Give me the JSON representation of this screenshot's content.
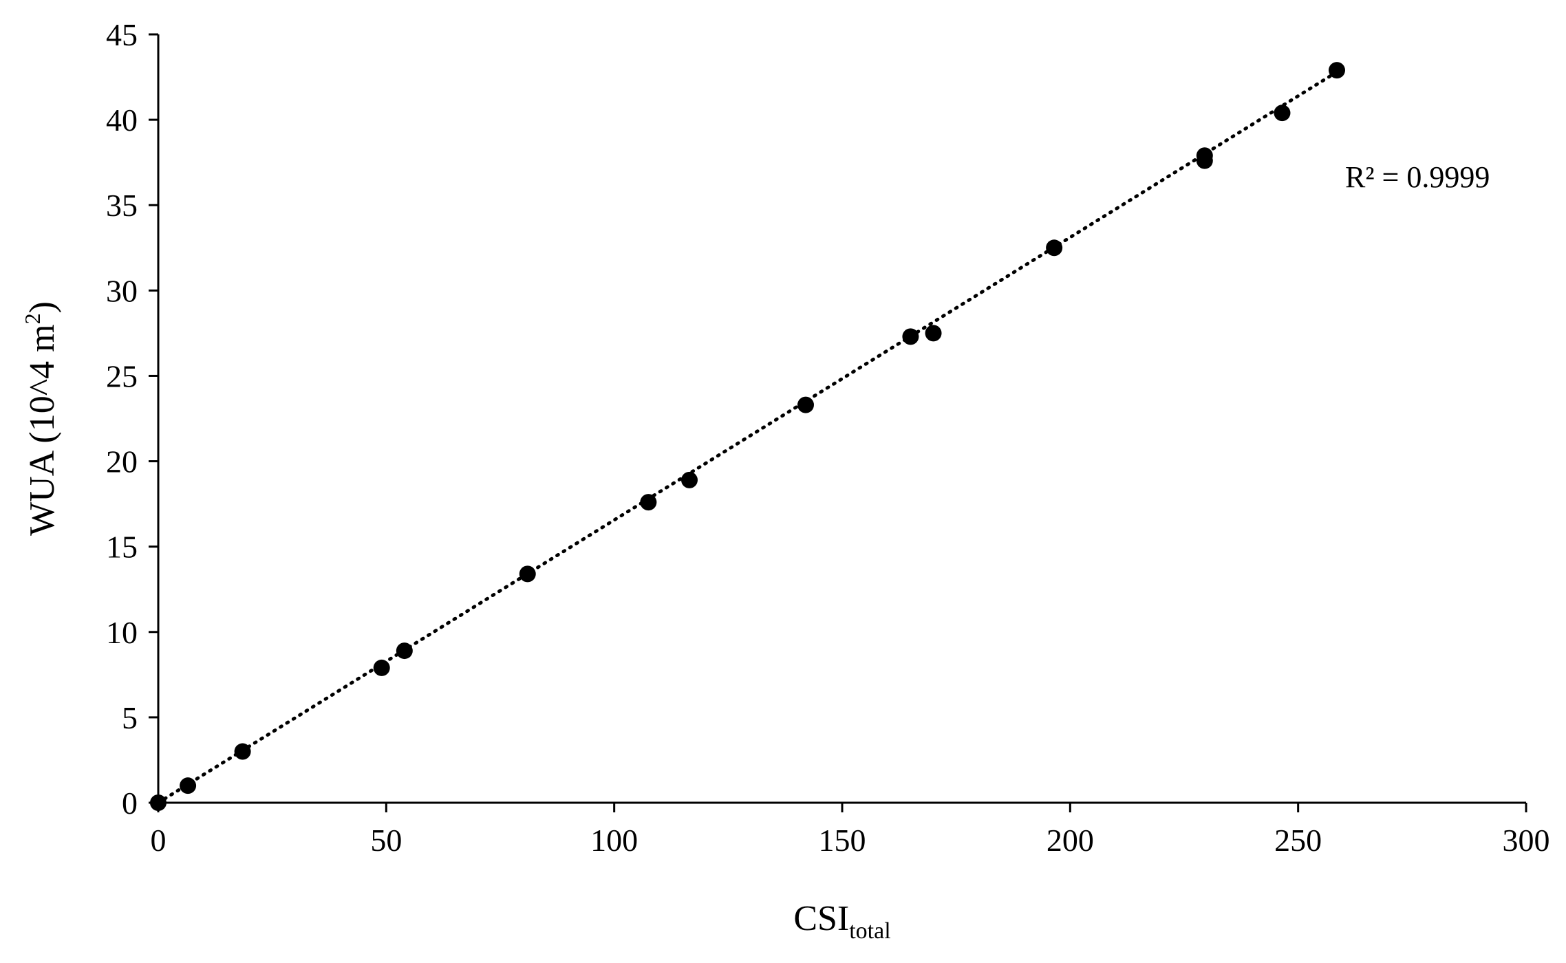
{
  "chart_data": {
    "type": "scatter",
    "xlabel": "CSI",
    "xlabel_sub": "total",
    "ylabel": "WUA (10^4 m",
    "ylabel_sup": "2",
    "ylabel_end": ")",
    "xlim": [
      0,
      300
    ],
    "ylim": [
      0,
      45
    ],
    "xticks": [
      0,
      50,
      100,
      150,
      200,
      250,
      300
    ],
    "yticks": [
      0,
      5,
      10,
      15,
      20,
      25,
      30,
      35,
      40,
      45
    ],
    "grid": false,
    "legend": "none",
    "marker_color": "#000000",
    "series": [
      {
        "x": [
          0,
          6.5,
          18.5,
          49,
          54,
          81,
          107.5,
          116.5,
          142,
          165,
          170,
          196.5,
          229.5,
          229.5,
          246.5,
          258.5
        ],
        "y": [
          0,
          1.0,
          3.0,
          7.9,
          8.9,
          13.4,
          17.6,
          18.9,
          23.3,
          27.3,
          27.5,
          32.5,
          37.6,
          37.9,
          40.4,
          42.9
        ]
      }
    ],
    "trendline": {
      "style": "dotted",
      "x": [
        0,
        258.5
      ],
      "y": [
        0,
        42.8
      ]
    },
    "annotation": "R² = 0.9999"
  }
}
